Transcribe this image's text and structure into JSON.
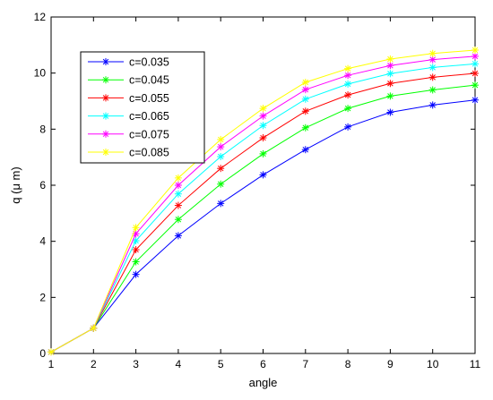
{
  "chart_data": {
    "type": "line",
    "xlabel": "angle",
    "ylabel": "q (μ m)",
    "xlim": [
      1,
      11
    ],
    "ylim": [
      0,
      12
    ],
    "xticks": [
      1,
      2,
      3,
      4,
      5,
      6,
      7,
      8,
      9,
      10,
      11
    ],
    "yticks": [
      0,
      2,
      4,
      6,
      8,
      10,
      12
    ],
    "grid": false,
    "legend_position": "top-left",
    "marker": "asterisk",
    "x": [
      1,
      2,
      3,
      4,
      5,
      6,
      7,
      8,
      9,
      10,
      11
    ],
    "series": [
      {
        "name": "c=0.035",
        "color": "#0000ff",
        "values": [
          0.05,
          0.9,
          2.82,
          4.2,
          5.35,
          6.37,
          7.27,
          8.08,
          8.6,
          8.86,
          9.04
        ]
      },
      {
        "name": "c=0.045",
        "color": "#00ff00",
        "values": [
          0.05,
          0.9,
          3.27,
          4.78,
          6.04,
          7.12,
          8.05,
          8.74,
          9.18,
          9.4,
          9.57
        ]
      },
      {
        "name": "c=0.055",
        "color": "#ff0000",
        "values": [
          0.05,
          0.9,
          3.7,
          5.28,
          6.6,
          7.69,
          8.64,
          9.22,
          9.63,
          9.85,
          9.99
        ]
      },
      {
        "name": "c=0.065",
        "color": "#00ffff",
        "values": [
          0.05,
          0.9,
          4.02,
          5.69,
          7.02,
          8.13,
          9.07,
          9.61,
          9.98,
          10.2,
          10.33
        ]
      },
      {
        "name": "c=0.075",
        "color": "#ff00ff",
        "values": [
          0.05,
          0.9,
          4.27,
          6.0,
          7.37,
          8.47,
          9.41,
          9.92,
          10.27,
          10.48,
          10.6
        ]
      },
      {
        "name": "c=0.085",
        "color": "#ffff00",
        "values": [
          0.05,
          0.9,
          4.49,
          6.26,
          7.63,
          8.74,
          9.67,
          10.16,
          10.5,
          10.7,
          10.82
        ]
      }
    ]
  }
}
